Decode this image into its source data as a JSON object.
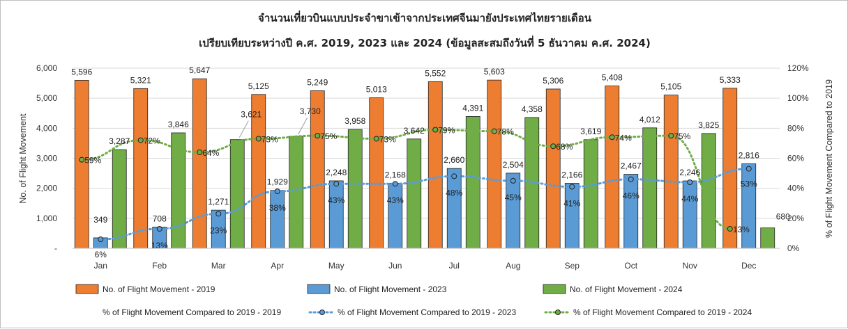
{
  "chart_data": {
    "type": "bar",
    "title": "จำนวนเที่ยวบินแบบประจำขาเข้าจากประเทศจีนมายังประเทศไทยรายเดือน",
    "subtitle": "เปรียบเทียบระหว่างปี  ค.ศ. 2019, 2023 และ 2024 (ข้อมูลสะสมถึงวันที่ 5 ธันวาคม ค.ศ. 2024)",
    "ylabel": "No. of Flight Movement",
    "y2label": "% of Flight Movement Compared to 2019",
    "ylim": [
      0,
      6000
    ],
    "y2lim": [
      0,
      120
    ],
    "yticks": [
      "-",
      "1,000",
      "2,000",
      "3,000",
      "4,000",
      "5,000",
      "6,000"
    ],
    "y2ticks": [
      "0%",
      "20%",
      "40%",
      "60%",
      "80%",
      "100%",
      "120%"
    ],
    "grid": true,
    "legend_position": "bottom",
    "categories": [
      "Jan",
      "Feb",
      "Mar",
      "Apr",
      "May",
      "Jun",
      "Jul",
      "Aug",
      "Sep",
      "Oct",
      "Nov",
      "Dec"
    ],
    "series": [
      {
        "name": "No. of Flight Movement - 2019",
        "color": "#ED7D31",
        "values": [
          5596,
          5321,
          5647,
          5125,
          5249,
          5013,
          5552,
          5603,
          5306,
          5408,
          5105,
          5333
        ],
        "labels": [
          "5,596",
          "5,321",
          "5,647",
          "5,125",
          "5,249",
          "5,013",
          "5,552",
          "5,603",
          "5,306",
          "5,408",
          "5,105",
          "5,333"
        ]
      },
      {
        "name": "No. of Flight Movement - 2023",
        "color": "#5B9BD5",
        "values": [
          349,
          708,
          1271,
          1929,
          2248,
          2168,
          2660,
          2504,
          2166,
          2467,
          2246,
          2816
        ],
        "labels": [
          "349",
          "708",
          "1,271",
          "1,929",
          "2,248",
          "2,168",
          "2,660",
          "2,504",
          "2,166",
          "2,467",
          "2,246",
          "2,816"
        ]
      },
      {
        "name": "No. of Flight Movement - 2024",
        "color": "#70AD47",
        "values": [
          3287,
          3846,
          3621,
          3730,
          3958,
          3642,
          4391,
          4358,
          3619,
          4012,
          3825,
          680
        ],
        "labels": [
          "3,287",
          "3,846",
          "3,621",
          "3,730",
          "3,958",
          "3,642",
          "4,391",
          "4,358",
          "3,619",
          "4,012",
          "3,825",
          "680"
        ]
      }
    ],
    "pct_series": [
      {
        "name": "% of Flight Movement Compared to 2019 - 2019",
        "color": "#ED7D31",
        "values": [],
        "labels": []
      },
      {
        "name": "% of Flight Movement Compared to 2019 - 2023",
        "color": "#5B9BD5",
        "values": [
          6,
          13,
          23,
          38,
          43,
          43,
          48,
          45,
          41,
          46,
          44,
          53
        ],
        "labels": [
          "6%",
          "13%",
          "23%",
          "38%",
          "43%",
          "43%",
          "48%",
          "45%",
          "41%",
          "46%",
          "44%",
          "53%"
        ]
      },
      {
        "name": "% of Flight Movement Compared to 2019 - 2024",
        "color": "#70AD47",
        "values": [
          59,
          72,
          64,
          73,
          75,
          73,
          79,
          78,
          68,
          74,
          75,
          13
        ],
        "labels": [
          "59%",
          "72%",
          "64%",
          "73%",
          "75%",
          "73%",
          "79%",
          "78%",
          "68%",
          "74%",
          "75%",
          "13%"
        ]
      }
    ]
  }
}
